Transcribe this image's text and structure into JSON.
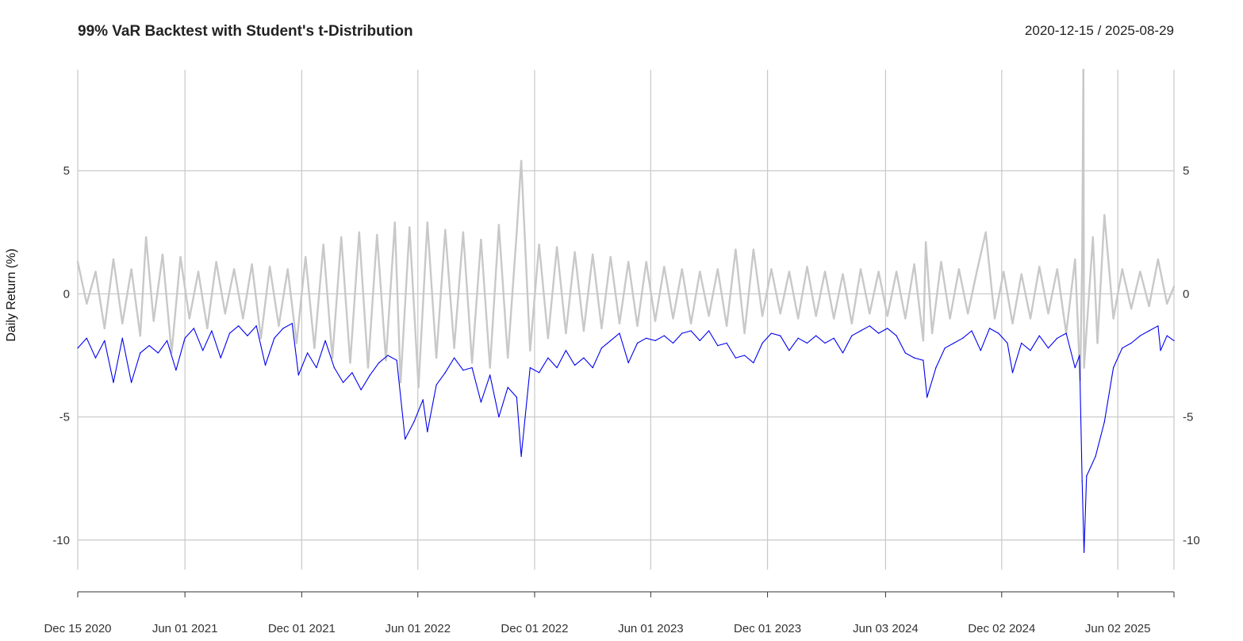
{
  "chart_data": {
    "type": "line",
    "title": "99% VaR Backtest with Student's t-Distribution",
    "date_range": "2020-12-15 / 2025-08-29",
    "ylabel": "Daily Return (%)",
    "xlabel": "",
    "ylim": [
      -11.2,
      9.1
    ],
    "xlim": [
      "2020-12-15",
      "2025-08-29"
    ],
    "grid": true,
    "y_ticks": [
      5,
      0,
      -5,
      -10
    ],
    "y_tick_labels": [
      "5",
      "0",
      "-5",
      "-10"
    ],
    "x_ticks": [
      {
        "date": "2020-12-15",
        "label": "Dec 15 2020"
      },
      {
        "date": "2021-06-01",
        "label": "Jun 01 2021"
      },
      {
        "date": "2021-12-01",
        "label": "Dec 01 2021"
      },
      {
        "date": "2022-06-01",
        "label": "Jun 01 2022"
      },
      {
        "date": "2022-12-01",
        "label": "Dec 01 2022"
      },
      {
        "date": "2023-06-01",
        "label": "Jun 01 2023"
      },
      {
        "date": "2023-12-01",
        "label": "Dec 01 2023"
      },
      {
        "date": "2024-06-03",
        "label": "Jun 03 2024"
      },
      {
        "date": "2024-12-02",
        "label": "Dec 02 2024"
      },
      {
        "date": "2025-06-02",
        "label": "Jun 02 2025"
      },
      {
        "date": "2025-08-29",
        "label": ""
      }
    ],
    "series": [
      {
        "key": "returns",
        "color": "#c8c8c8",
        "points": [
          [
            "2020-12-15",
            1.3
          ],
          [
            "2020-12-29",
            -0.4
          ],
          [
            "2021-01-12",
            0.9
          ],
          [
            "2021-01-26",
            -1.4
          ],
          [
            "2021-02-09",
            1.4
          ],
          [
            "2021-02-23",
            -1.2
          ],
          [
            "2021-03-09",
            1.0
          ],
          [
            "2021-03-23",
            -1.7
          ],
          [
            "2021-04-01",
            2.3
          ],
          [
            "2021-04-13",
            -1.1
          ],
          [
            "2021-04-27",
            1.6
          ],
          [
            "2021-05-11",
            -2.4
          ],
          [
            "2021-05-25",
            1.5
          ],
          [
            "2021-06-08",
            -1.0
          ],
          [
            "2021-06-22",
            0.9
          ],
          [
            "2021-07-06",
            -1.4
          ],
          [
            "2021-07-20",
            1.3
          ],
          [
            "2021-08-03",
            -0.8
          ],
          [
            "2021-08-17",
            1.0
          ],
          [
            "2021-08-31",
            -1.0
          ],
          [
            "2021-09-14",
            1.2
          ],
          [
            "2021-09-28",
            -1.8
          ],
          [
            "2021-10-12",
            1.1
          ],
          [
            "2021-10-26",
            -1.3
          ],
          [
            "2021-11-09",
            1.0
          ],
          [
            "2021-11-23",
            -2.0
          ],
          [
            "2021-12-07",
            1.5
          ],
          [
            "2021-12-21",
            -2.2
          ],
          [
            "2022-01-04",
            2.0
          ],
          [
            "2022-01-18",
            -2.6
          ],
          [
            "2022-02-01",
            2.3
          ],
          [
            "2022-02-15",
            -2.8
          ],
          [
            "2022-03-01",
            2.5
          ],
          [
            "2022-03-15",
            -3.0
          ],
          [
            "2022-03-29",
            2.4
          ],
          [
            "2022-04-12",
            -2.7
          ],
          [
            "2022-04-26",
            2.9
          ],
          [
            "2022-05-05",
            -3.6
          ],
          [
            "2022-05-19",
            2.7
          ],
          [
            "2022-06-02",
            -3.8
          ],
          [
            "2022-06-16",
            2.9
          ],
          [
            "2022-06-30",
            -2.6
          ],
          [
            "2022-07-14",
            2.6
          ],
          [
            "2022-07-28",
            -2.2
          ],
          [
            "2022-08-11",
            2.5
          ],
          [
            "2022-08-25",
            -2.8
          ],
          [
            "2022-09-08",
            2.2
          ],
          [
            "2022-09-22",
            -3.0
          ],
          [
            "2022-10-06",
            2.8
          ],
          [
            "2022-10-20",
            -2.6
          ],
          [
            "2022-11-03",
            2.5
          ],
          [
            "2022-11-10",
            5.4
          ],
          [
            "2022-11-24",
            -2.3
          ],
          [
            "2022-12-08",
            2.0
          ],
          [
            "2022-12-22",
            -1.8
          ],
          [
            "2023-01-05",
            1.9
          ],
          [
            "2023-01-19",
            -1.6
          ],
          [
            "2023-02-02",
            1.7
          ],
          [
            "2023-02-16",
            -1.5
          ],
          [
            "2023-03-02",
            1.6
          ],
          [
            "2023-03-16",
            -1.4
          ],
          [
            "2023-03-30",
            1.5
          ],
          [
            "2023-04-13",
            -1.2
          ],
          [
            "2023-04-27",
            1.3
          ],
          [
            "2023-05-11",
            -1.3
          ],
          [
            "2023-05-25",
            1.3
          ],
          [
            "2023-06-08",
            -1.1
          ],
          [
            "2023-06-22",
            1.1
          ],
          [
            "2023-07-06",
            -1.0
          ],
          [
            "2023-07-20",
            1.0
          ],
          [
            "2023-08-03",
            -1.2
          ],
          [
            "2023-08-17",
            0.9
          ],
          [
            "2023-08-31",
            -0.9
          ],
          [
            "2023-09-14",
            1.0
          ],
          [
            "2023-09-28",
            -1.3
          ],
          [
            "2023-10-12",
            1.8
          ],
          [
            "2023-10-26",
            -1.6
          ],
          [
            "2023-11-09",
            1.8
          ],
          [
            "2023-11-23",
            -0.9
          ],
          [
            "2023-12-07",
            1.0
          ],
          [
            "2023-12-21",
            -0.8
          ],
          [
            "2024-01-04",
            0.9
          ],
          [
            "2024-01-18",
            -1.0
          ],
          [
            "2024-02-01",
            1.1
          ],
          [
            "2024-02-15",
            -0.9
          ],
          [
            "2024-02-29",
            0.9
          ],
          [
            "2024-03-14",
            -1.0
          ],
          [
            "2024-03-28",
            0.8
          ],
          [
            "2024-04-11",
            -1.2
          ],
          [
            "2024-04-25",
            1.0
          ],
          [
            "2024-05-09",
            -0.8
          ],
          [
            "2024-05-23",
            0.9
          ],
          [
            "2024-06-06",
            -0.9
          ],
          [
            "2024-06-20",
            0.9
          ],
          [
            "2024-07-04",
            -1.0
          ],
          [
            "2024-07-18",
            1.2
          ],
          [
            "2024-08-01",
            -1.9
          ],
          [
            "2024-08-05",
            2.1
          ],
          [
            "2024-08-15",
            -1.6
          ],
          [
            "2024-08-29",
            1.3
          ],
          [
            "2024-09-12",
            -1.0
          ],
          [
            "2024-09-26",
            1.0
          ],
          [
            "2024-10-10",
            -0.8
          ],
          [
            "2024-10-24",
            0.9
          ],
          [
            "2024-11-07",
            2.5
          ],
          [
            "2024-11-21",
            -1.0
          ],
          [
            "2024-12-05",
            0.9
          ],
          [
            "2024-12-19",
            -1.2
          ],
          [
            "2025-01-02",
            0.8
          ],
          [
            "2025-01-16",
            -1.0
          ],
          [
            "2025-01-30",
            1.1
          ],
          [
            "2025-02-13",
            -0.8
          ],
          [
            "2025-02-27",
            1.0
          ],
          [
            "2025-03-13",
            -1.6
          ],
          [
            "2025-03-27",
            1.4
          ],
          [
            "2025-04-04",
            -3.5
          ],
          [
            "2025-04-07",
            1.2
          ],
          [
            "2025-04-09",
            9.1
          ],
          [
            "2025-04-10",
            -3.0
          ],
          [
            "2025-04-24",
            2.3
          ],
          [
            "2025-05-01",
            -2.0
          ],
          [
            "2025-05-12",
            3.2
          ],
          [
            "2025-05-26",
            -1.0
          ],
          [
            "2025-06-09",
            1.0
          ],
          [
            "2025-06-23",
            -0.6
          ],
          [
            "2025-07-07",
            0.9
          ],
          [
            "2025-07-21",
            -0.5
          ],
          [
            "2025-08-04",
            1.4
          ],
          [
            "2025-08-18",
            -0.4
          ],
          [
            "2025-08-29",
            0.3
          ]
        ]
      },
      {
        "key": "var99",
        "color": "#0000ee",
        "points": [
          [
            "2020-12-15",
            -2.2
          ],
          [
            "2020-12-29",
            -1.8
          ],
          [
            "2021-01-12",
            -2.6
          ],
          [
            "2021-01-26",
            -1.9
          ],
          [
            "2021-02-09",
            -3.6
          ],
          [
            "2021-02-23",
            -1.8
          ],
          [
            "2021-03-09",
            -3.6
          ],
          [
            "2021-03-23",
            -2.4
          ],
          [
            "2021-04-06",
            -2.1
          ],
          [
            "2021-04-20",
            -2.4
          ],
          [
            "2021-05-04",
            -1.9
          ],
          [
            "2021-05-18",
            -3.1
          ],
          [
            "2021-06-01",
            -1.8
          ],
          [
            "2021-06-15",
            -1.4
          ],
          [
            "2021-06-29",
            -2.3
          ],
          [
            "2021-07-13",
            -1.5
          ],
          [
            "2021-07-27",
            -2.6
          ],
          [
            "2021-08-10",
            -1.6
          ],
          [
            "2021-08-24",
            -1.3
          ],
          [
            "2021-09-07",
            -1.7
          ],
          [
            "2021-09-21",
            -1.3
          ],
          [
            "2021-10-05",
            -2.9
          ],
          [
            "2021-10-19",
            -1.8
          ],
          [
            "2021-11-02",
            -1.4
          ],
          [
            "2021-11-16",
            -1.2
          ],
          [
            "2021-11-26",
            -3.3
          ],
          [
            "2021-12-10",
            -2.4
          ],
          [
            "2021-12-24",
            -3.0
          ],
          [
            "2022-01-07",
            -1.9
          ],
          [
            "2022-01-21",
            -3.0
          ],
          [
            "2022-02-04",
            -3.6
          ],
          [
            "2022-02-18",
            -3.2
          ],
          [
            "2022-03-04",
            -3.9
          ],
          [
            "2022-03-18",
            -3.3
          ],
          [
            "2022-04-01",
            -2.8
          ],
          [
            "2022-04-15",
            -2.5
          ],
          [
            "2022-04-29",
            -2.7
          ],
          [
            "2022-05-12",
            -5.9
          ],
          [
            "2022-05-26",
            -5.2
          ],
          [
            "2022-06-09",
            -4.3
          ],
          [
            "2022-06-16",
            -5.6
          ],
          [
            "2022-06-30",
            -3.7
          ],
          [
            "2022-07-14",
            -3.2
          ],
          [
            "2022-07-28",
            -2.6
          ],
          [
            "2022-08-11",
            -3.1
          ],
          [
            "2022-08-25",
            -3.0
          ],
          [
            "2022-09-08",
            -4.4
          ],
          [
            "2022-09-22",
            -3.3
          ],
          [
            "2022-10-06",
            -5.0
          ],
          [
            "2022-10-20",
            -3.8
          ],
          [
            "2022-11-03",
            -4.2
          ],
          [
            "2022-11-10",
            -6.6
          ],
          [
            "2022-11-24",
            -3.0
          ],
          [
            "2022-12-08",
            -3.2
          ],
          [
            "2022-12-22",
            -2.6
          ],
          [
            "2023-01-05",
            -3.0
          ],
          [
            "2023-01-19",
            -2.3
          ],
          [
            "2023-02-02",
            -2.9
          ],
          [
            "2023-02-16",
            -2.6
          ],
          [
            "2023-03-02",
            -3.0
          ],
          [
            "2023-03-16",
            -2.2
          ],
          [
            "2023-03-30",
            -1.9
          ],
          [
            "2023-04-13",
            -1.6
          ],
          [
            "2023-04-27",
            -2.8
          ],
          [
            "2023-05-11",
            -2.0
          ],
          [
            "2023-05-25",
            -1.8
          ],
          [
            "2023-06-08",
            -1.9
          ],
          [
            "2023-06-22",
            -1.7
          ],
          [
            "2023-07-06",
            -2.0
          ],
          [
            "2023-07-20",
            -1.6
          ],
          [
            "2023-08-03",
            -1.5
          ],
          [
            "2023-08-17",
            -1.9
          ],
          [
            "2023-08-31",
            -1.5
          ],
          [
            "2023-09-14",
            -2.1
          ],
          [
            "2023-09-28",
            -2.0
          ],
          [
            "2023-10-12",
            -2.6
          ],
          [
            "2023-10-26",
            -2.5
          ],
          [
            "2023-11-09",
            -2.8
          ],
          [
            "2023-11-23",
            -2.0
          ],
          [
            "2023-12-07",
            -1.6
          ],
          [
            "2023-12-21",
            -1.7
          ],
          [
            "2024-01-04",
            -2.3
          ],
          [
            "2024-01-18",
            -1.8
          ],
          [
            "2024-02-01",
            -2.0
          ],
          [
            "2024-02-15",
            -1.7
          ],
          [
            "2024-02-29",
            -2.0
          ],
          [
            "2024-03-14",
            -1.8
          ],
          [
            "2024-03-28",
            -2.4
          ],
          [
            "2024-04-11",
            -1.7
          ],
          [
            "2024-04-25",
            -1.5
          ],
          [
            "2024-05-09",
            -1.3
          ],
          [
            "2024-05-23",
            -1.6
          ],
          [
            "2024-06-06",
            -1.4
          ],
          [
            "2024-06-20",
            -1.7
          ],
          [
            "2024-07-04",
            -2.4
          ],
          [
            "2024-07-18",
            -2.6
          ],
          [
            "2024-08-01",
            -2.7
          ],
          [
            "2024-08-07",
            -4.2
          ],
          [
            "2024-08-21",
            -3.0
          ],
          [
            "2024-09-04",
            -2.2
          ],
          [
            "2024-09-18",
            -2.0
          ],
          [
            "2024-10-02",
            -1.8
          ],
          [
            "2024-10-16",
            -1.5
          ],
          [
            "2024-10-30",
            -2.3
          ],
          [
            "2024-11-13",
            -1.4
          ],
          [
            "2024-11-27",
            -1.6
          ],
          [
            "2024-12-11",
            -2.0
          ],
          [
            "2024-12-19",
            -3.2
          ],
          [
            "2025-01-02",
            -2.0
          ],
          [
            "2025-01-16",
            -2.3
          ],
          [
            "2025-01-30",
            -1.7
          ],
          [
            "2025-02-13",
            -2.2
          ],
          [
            "2025-02-27",
            -1.8
          ],
          [
            "2025-03-13",
            -1.6
          ],
          [
            "2025-03-27",
            -3.0
          ],
          [
            "2025-04-03",
            -2.5
          ],
          [
            "2025-04-07",
            -7.6
          ],
          [
            "2025-04-10",
            -10.5
          ],
          [
            "2025-04-14",
            -7.4
          ],
          [
            "2025-04-28",
            -6.6
          ],
          [
            "2025-05-12",
            -5.2
          ],
          [
            "2025-05-26",
            -3.0
          ],
          [
            "2025-06-09",
            -2.2
          ],
          [
            "2025-06-23",
            -2.0
          ],
          [
            "2025-07-07",
            -1.7
          ],
          [
            "2025-07-21",
            -1.5
          ],
          [
            "2025-08-04",
            -1.3
          ],
          [
            "2025-08-08",
            -2.3
          ],
          [
            "2025-08-18",
            -1.7
          ],
          [
            "2025-08-29",
            -1.9
          ]
        ]
      }
    ]
  }
}
